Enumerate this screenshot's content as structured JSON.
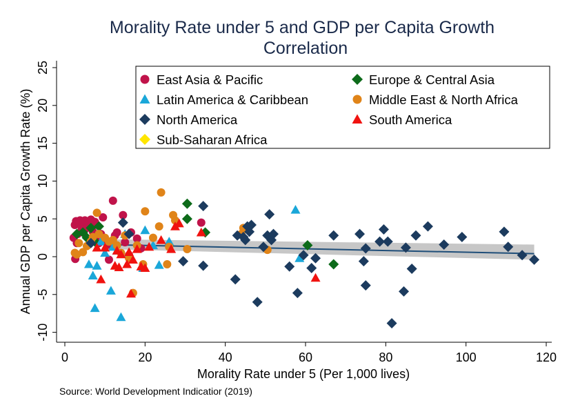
{
  "chart_data": {
    "type": "scatter",
    "title_line1": "Morality Rate under 5 and GDP per Capita Growth",
    "title_line2": "Correlation",
    "xlabel": "Morality Rate under 5 (Per 1,000 lives)",
    "ylabel": "Annual GDP per Capita Growth Rate (%)",
    "source": "Source: World Development Indicatior (2019)",
    "xlim": [
      0,
      120
    ],
    "ylim": [
      -10,
      25
    ],
    "xticks": [
      0,
      20,
      40,
      60,
      80,
      100,
      120
    ],
    "yticks": [
      -10,
      -5,
      0,
      5,
      10,
      15,
      20,
      25
    ],
    "grid": false,
    "legend_position": "top-right",
    "fit_line": {
      "x": [
        10,
        117
      ],
      "y": [
        1.6,
        0.4
      ],
      "ci_upper": [
        2.3,
        1.6
      ],
      "ci_lower": [
        1.0,
        -0.4
      ],
      "line_color": "#1f4e79",
      "band_color": "#bdbdbd"
    },
    "series": [
      {
        "name": "East Asia & Pacific",
        "marker": "circle",
        "color": "#c0134a",
        "points": [
          [
            2.5,
            4.2
          ],
          [
            2.8,
            4.7
          ],
          [
            3.2,
            3.0
          ],
          [
            3.5,
            4.5
          ],
          [
            3.8,
            4.8
          ],
          [
            4.2,
            3.6
          ],
          [
            4.5,
            4.4
          ],
          [
            5.0,
            4.8
          ],
          [
            5.5,
            3.8
          ],
          [
            6.0,
            4.5
          ],
          [
            6.5,
            4.9
          ],
          [
            7.0,
            3.3
          ],
          [
            7.5,
            4.6
          ],
          [
            8.0,
            2.8
          ],
          [
            8.5,
            1.8
          ],
          [
            9.0,
            3.0
          ],
          [
            9.5,
            5.2
          ],
          [
            10.0,
            2.2
          ],
          [
            11.0,
            1.6
          ],
          [
            12.0,
            7.4
          ],
          [
            12.5,
            2.8
          ],
          [
            13.0,
            3.2
          ],
          [
            14.5,
            5.5
          ],
          [
            15.0,
            1.9
          ],
          [
            16.5,
            3.2
          ],
          [
            18.0,
            2.4
          ],
          [
            19.0,
            1.1
          ],
          [
            34.0,
            4.5
          ],
          [
            2.2,
            2.5
          ],
          [
            3.0,
            1.8
          ],
          [
            2.6,
            -0.3
          ],
          [
            11.0,
            -0.4
          ],
          [
            16.0,
            0.2
          ]
        ]
      },
      {
        "name": "Europe & Central Asia",
        "marker": "diamond",
        "color": "#0d6b1a",
        "points": [
          [
            3.0,
            3.0
          ],
          [
            4.5,
            3.2
          ],
          [
            5.5,
            2.5
          ],
          [
            6.5,
            3.8
          ],
          [
            7.5,
            2.0
          ],
          [
            8.5,
            4.0
          ],
          [
            30.5,
            7.0
          ],
          [
            30.5,
            5.0
          ],
          [
            35.0,
            3.2
          ],
          [
            60.5,
            1.5
          ],
          [
            67.0,
            -1.0
          ]
        ]
      },
      {
        "name": "Latin America & Caribbean",
        "marker": "triangle",
        "color": "#1aa7d9",
        "points": [
          [
            6.0,
            -1.0
          ],
          [
            7.0,
            -2.5
          ],
          [
            7.5,
            -6.8
          ],
          [
            8.0,
            -1.2
          ],
          [
            10.0,
            0.5
          ],
          [
            11.5,
            -4.5
          ],
          [
            12.0,
            1.3
          ],
          [
            14.0,
            -8.0
          ],
          [
            15.0,
            3.0
          ],
          [
            16.0,
            0.5
          ],
          [
            19.5,
            -1.5
          ],
          [
            20.0,
            3.5
          ],
          [
            22.0,
            1.5
          ],
          [
            23.5,
            -1.1
          ],
          [
            26.0,
            2.0
          ],
          [
            57.5,
            6.2
          ],
          [
            58.5,
            -0.2
          ],
          [
            9.0,
            2.0
          ],
          [
            13.0,
            0.8
          ]
        ]
      },
      {
        "name": "Middle East & North Africa",
        "marker": "circle",
        "color": "#e08419",
        "points": [
          [
            2.5,
            0.5
          ],
          [
            3.5,
            1.8
          ],
          [
            4.5,
            0.6
          ],
          [
            5.5,
            1.4
          ],
          [
            6.5,
            2.0
          ],
          [
            7.0,
            2.6
          ],
          [
            8.0,
            5.8
          ],
          [
            8.5,
            3.0
          ],
          [
            10.0,
            2.5
          ],
          [
            11.0,
            2.0
          ],
          [
            12.0,
            2.2
          ],
          [
            13.0,
            1.5
          ],
          [
            14.0,
            0.5
          ],
          [
            15.0,
            2.8
          ],
          [
            16.0,
            -0.2
          ],
          [
            17.0,
            -4.8
          ],
          [
            18.0,
            1.5
          ],
          [
            19.5,
            -1.0
          ],
          [
            20.0,
            6.0
          ],
          [
            22.0,
            2.5
          ],
          [
            23.5,
            4.0
          ],
          [
            24.0,
            8.5
          ],
          [
            25.5,
            -1.0
          ],
          [
            26.0,
            1.3
          ],
          [
            27.0,
            5.5
          ],
          [
            27.5,
            4.8
          ],
          [
            30.5,
            1.0
          ],
          [
            44.0,
            3.0
          ],
          [
            44.5,
            3.8
          ],
          [
            50.5,
            0.9
          ],
          [
            3.0,
            0.3
          ]
        ]
      },
      {
        "name": "North America",
        "marker": "diamond",
        "color": "#1c3b5e",
        "points": [
          [
            6.5,
            1.8
          ],
          [
            14.5,
            4.5
          ],
          [
            16.0,
            3.0
          ],
          [
            29.5,
            -0.6
          ],
          [
            34.5,
            6.7
          ],
          [
            34.5,
            -1.2
          ],
          [
            42.5,
            -3.0
          ],
          [
            43.0,
            2.8
          ],
          [
            44.5,
            2.6
          ],
          [
            45.0,
            2.2
          ],
          [
            45.5,
            4.0
          ],
          [
            46.0,
            3.3
          ],
          [
            46.5,
            4.2
          ],
          [
            48.0,
            -6.0
          ],
          [
            49.5,
            1.3
          ],
          [
            50.5,
            2.8
          ],
          [
            51.0,
            5.6
          ],
          [
            51.5,
            2.2
          ],
          [
            52.0,
            3.0
          ],
          [
            56.0,
            -1.3
          ],
          [
            58.0,
            -4.8
          ],
          [
            59.5,
            0.2
          ],
          [
            61.5,
            -1.5
          ],
          [
            62.5,
            -0.2
          ],
          [
            67.0,
            2.8
          ],
          [
            73.5,
            3.0
          ],
          [
            74.5,
            -0.6
          ],
          [
            75.0,
            1.1
          ],
          [
            75.0,
            -3.8
          ],
          [
            78.5,
            2.0
          ],
          [
            79.5,
            3.6
          ],
          [
            80.5,
            2.0
          ],
          [
            81.5,
            -8.8
          ],
          [
            84.5,
            -4.6
          ],
          [
            85.0,
            1.2
          ],
          [
            86.5,
            -1.6
          ],
          [
            87.5,
            2.8
          ],
          [
            90.5,
            4.0
          ],
          [
            94.5,
            1.6
          ],
          [
            99.0,
            2.6
          ],
          [
            109.5,
            3.3
          ],
          [
            110.5,
            1.3
          ],
          [
            114.0,
            0.2
          ],
          [
            117.0,
            -0.4
          ]
        ]
      },
      {
        "name": "South America",
        "marker": "triangle",
        "color": "#f0120f",
        "points": [
          [
            9.0,
            -3.0
          ],
          [
            10.0,
            1.2
          ],
          [
            12.5,
            -1.2
          ],
          [
            13.0,
            0.8
          ],
          [
            13.5,
            -1.4
          ],
          [
            14.0,
            0.3
          ],
          [
            15.5,
            -1.0
          ],
          [
            16.0,
            0.6
          ],
          [
            16.5,
            -4.9
          ],
          [
            17.0,
            -0.4
          ],
          [
            18.0,
            1.0
          ],
          [
            19.0,
            -1.3
          ],
          [
            20.0,
            -1.5
          ],
          [
            21.0,
            1.3
          ],
          [
            24.0,
            2.2
          ],
          [
            26.5,
            1.0
          ],
          [
            27.5,
            4.0
          ],
          [
            28.5,
            4.4
          ],
          [
            34.0,
            3.2
          ],
          [
            62.5,
            -2.8
          ],
          [
            8.0,
            1.2
          ]
        ]
      },
      {
        "name": "Sub-Saharan Africa",
        "marker": "diamond",
        "color": "#ffe600",
        "points": []
      }
    ]
  }
}
